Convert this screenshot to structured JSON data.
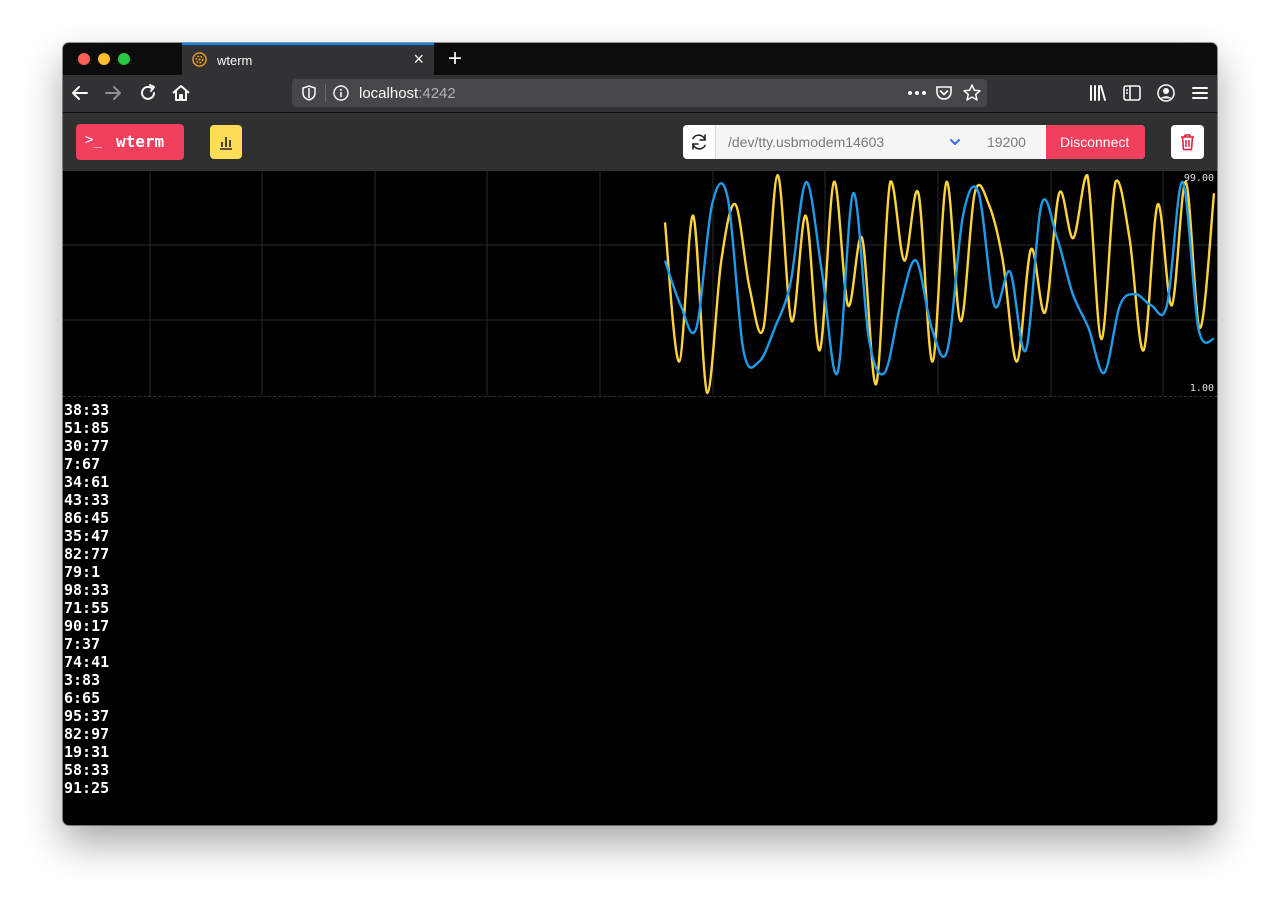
{
  "browser": {
    "tab_title": "wterm",
    "new_tab_label": "+",
    "close_tab_label": "×",
    "url_host": "localhost",
    "url_port": ":4242"
  },
  "app": {
    "brand_prompt": ">_",
    "brand_name": "wterm",
    "port_value": "/dev/tty.usbmodem14603",
    "baud_value": "19200",
    "disconnect_label": "Disconnect"
  },
  "colors": {
    "accent": "#f0405e",
    "chart_button": "#ffdd57",
    "series_a": "#ffd43b",
    "series_b": "#1e9be9",
    "trash_icon": "#e0223c"
  },
  "chart_data": {
    "type": "line",
    "y_max_label": "99.00",
    "y_min_label": "1.00",
    "ylim": [
      1,
      99
    ],
    "grid": true,
    "series": [
      {
        "color": "#ffd43b",
        "values": [
          77,
          15,
          80,
          1,
          60,
          85,
          48,
          30,
          98,
          33,
          80,
          20,
          95,
          40,
          70,
          5,
          95,
          60,
          90,
          15,
          95,
          33,
          90,
          85,
          60,
          15,
          65,
          37,
          90,
          70,
          98,
          25,
          95,
          70,
          20,
          85,
          40,
          95,
          30,
          90
        ]
      },
      {
        "color": "#1e9be9",
        "values": [
          60,
          40,
          30,
          85,
          88,
          20,
          15,
          30,
          50,
          95,
          55,
          10,
          90,
          25,
          10,
          40,
          60,
          30,
          20,
          80,
          90,
          40,
          55,
          20,
          85,
          70,
          45,
          30,
          10,
          40,
          45,
          40,
          40,
          95,
          30,
          25
        ]
      }
    ]
  },
  "terminal": {
    "lines": [
      "38:33",
      "51:85",
      "30:77",
      "7:67",
      "34:61",
      "43:33",
      "86:45",
      "35:47",
      "82:77",
      "79:1",
      "98:33",
      "71:55",
      "90:17",
      "7:37",
      "74:41",
      "3:83",
      "6:65",
      "95:37",
      "82:97",
      "19:31",
      "58:33",
      "91:25"
    ]
  }
}
